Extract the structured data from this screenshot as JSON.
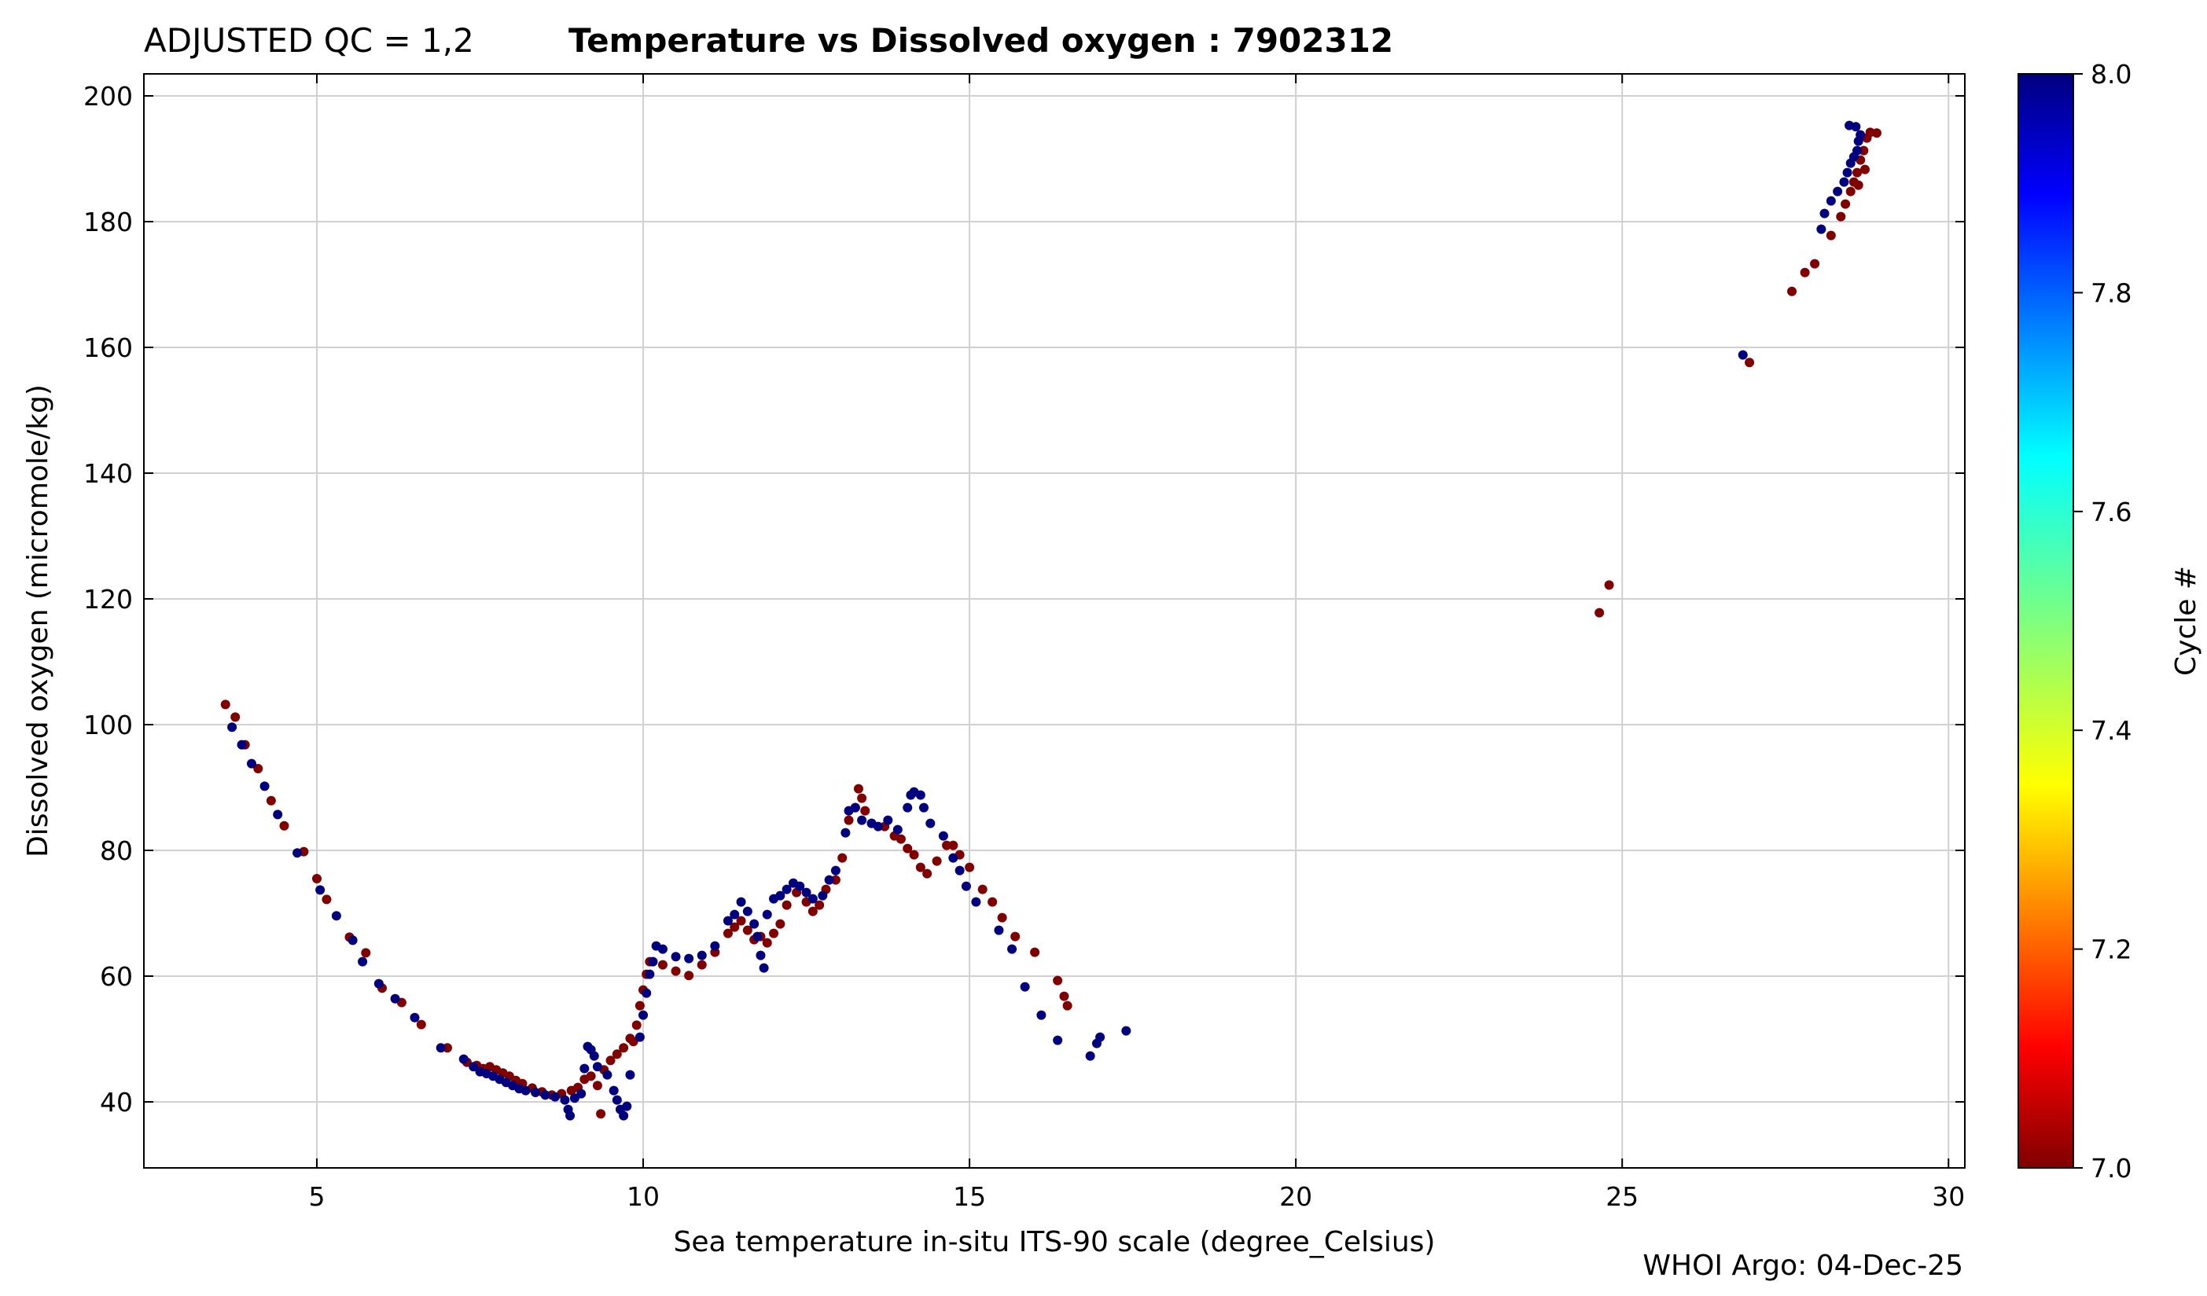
{
  "chart_data": {
    "type": "scatter",
    "title_prefix": "ADJUSTED QC = 1,2",
    "title": "Temperature vs Dissolved oxygen : 7902312",
    "xlabel": "Sea temperature in-situ ITS-90 scale  (degree_Celsius)",
    "ylabel": "Dissolved oxygen  (micromole/kg)",
    "xlim": [
      2.35,
      30.25
    ],
    "ylim": [
      29.5,
      203.5
    ],
    "xticks": [
      5,
      10,
      15,
      20,
      25,
      30
    ],
    "yticks": [
      40,
      60,
      80,
      100,
      120,
      140,
      160,
      180,
      200
    ],
    "grid": true,
    "colorbar": {
      "label": "Cycle #",
      "min": 7.0,
      "max": 8.0,
      "ticks": [
        "7.0",
        "7.2",
        "7.4",
        "7.6",
        "7.8",
        "8.0"
      ],
      "colormap": "jet"
    },
    "series": [
      {
        "name": "Cycle 7",
        "cycle": 7,
        "color": "#800000",
        "points": [
          [
            3.6,
            103.2
          ],
          [
            3.75,
            101.2
          ],
          [
            3.9,
            96.8
          ],
          [
            4.1,
            93
          ],
          [
            4.3,
            87.9
          ],
          [
            4.5,
            83.9
          ],
          [
            4.8,
            79.8
          ],
          [
            5.0,
            75.5
          ],
          [
            5.15,
            72.2
          ],
          [
            5.5,
            66.2
          ],
          [
            5.75,
            63.7
          ],
          [
            6.0,
            58.1
          ],
          [
            6.3,
            55.8
          ],
          [
            6.6,
            52.3
          ],
          [
            7.0,
            48.6
          ],
          [
            7.3,
            46.3
          ],
          [
            7.45,
            45.8
          ],
          [
            7.55,
            45.3
          ],
          [
            7.65,
            45.6
          ],
          [
            7.75,
            45.1
          ],
          [
            7.85,
            44.6
          ],
          [
            7.95,
            44.1
          ],
          [
            8.05,
            43.4
          ],
          [
            8.15,
            42.9
          ],
          [
            8.3,
            42.2
          ],
          [
            8.45,
            41.6
          ],
          [
            8.6,
            41.1
          ],
          [
            8.75,
            41.3
          ],
          [
            8.9,
            41.8
          ],
          [
            9.0,
            42.3
          ],
          [
            9.1,
            43.6
          ],
          [
            9.2,
            44.1
          ],
          [
            9.3,
            42.6
          ],
          [
            9.35,
            38.1
          ],
          [
            9.4,
            45.1
          ],
          [
            9.5,
            46.6
          ],
          [
            9.6,
            47.6
          ],
          [
            9.7,
            48.6
          ],
          [
            9.8,
            50.1
          ],
          [
            9.85,
            49.6
          ],
          [
            9.9,
            52.2
          ],
          [
            9.95,
            55.3
          ],
          [
            10.0,
            57.8
          ],
          [
            10.05,
            60.3
          ],
          [
            10.1,
            62.3
          ],
          [
            10.3,
            61.8
          ],
          [
            10.5,
            60.8
          ],
          [
            10.7,
            60.1
          ],
          [
            10.9,
            61.8
          ],
          [
            11.1,
            63.8
          ],
          [
            11.3,
            66.8
          ],
          [
            11.4,
            67.8
          ],
          [
            11.5,
            68.8
          ],
          [
            11.6,
            67.3
          ],
          [
            11.7,
            65.8
          ],
          [
            11.8,
            66.3
          ],
          [
            11.9,
            65.3
          ],
          [
            12.0,
            66.8
          ],
          [
            12.1,
            68.3
          ],
          [
            12.2,
            71.3
          ],
          [
            12.35,
            73.3
          ],
          [
            12.5,
            71.8
          ],
          [
            12.6,
            70.3
          ],
          [
            12.7,
            71.3
          ],
          [
            12.8,
            73.8
          ],
          [
            12.95,
            75.3
          ],
          [
            13.05,
            78.8
          ],
          [
            13.15,
            84.8
          ],
          [
            13.25,
            86.8
          ],
          [
            13.3,
            89.8
          ],
          [
            13.35,
            88.3
          ],
          [
            13.4,
            86.3
          ],
          [
            13.5,
            84.3
          ],
          [
            13.7,
            83.8
          ],
          [
            13.85,
            82.3
          ],
          [
            13.95,
            81.8
          ],
          [
            14.05,
            80.3
          ],
          [
            14.15,
            79.3
          ],
          [
            14.25,
            77.3
          ],
          [
            14.35,
            76.3
          ],
          [
            14.5,
            78.3
          ],
          [
            14.65,
            80.8
          ],
          [
            14.75,
            80.8
          ],
          [
            14.85,
            79.3
          ],
          [
            15.0,
            77.3
          ],
          [
            15.2,
            73.8
          ],
          [
            15.35,
            71.8
          ],
          [
            15.5,
            69.3
          ],
          [
            15.7,
            66.3
          ],
          [
            16.0,
            63.8
          ],
          [
            16.35,
            59.3
          ],
          [
            16.45,
            56.8
          ],
          [
            16.5,
            55.3
          ],
          [
            24.65,
            117.8
          ],
          [
            24.8,
            122.2
          ],
          [
            26.95,
            157.6
          ],
          [
            27.6,
            168.9
          ],
          [
            27.8,
            171.9
          ],
          [
            27.95,
            173.3
          ],
          [
            28.2,
            177.8
          ],
          [
            28.35,
            180.8
          ],
          [
            28.42,
            182.8
          ],
          [
            28.5,
            184.8
          ],
          [
            28.55,
            186.3
          ],
          [
            28.6,
            187.8
          ],
          [
            28.65,
            189.8
          ],
          [
            28.7,
            191.3
          ],
          [
            28.75,
            193.3
          ],
          [
            28.8,
            194.2
          ],
          [
            28.9,
            194.1
          ],
          [
            28.72,
            188.3
          ],
          [
            28.62,
            185.8
          ]
        ]
      },
      {
        "name": "Cycle 8",
        "cycle": 8,
        "color": "#00007f",
        "points": [
          [
            3.7,
            99.6
          ],
          [
            3.85,
            96.8
          ],
          [
            4.0,
            93.8
          ],
          [
            4.2,
            90.2
          ],
          [
            4.4,
            85.7
          ],
          [
            4.7,
            79.6
          ],
          [
            5.05,
            73.7
          ],
          [
            5.3,
            69.6
          ],
          [
            5.55,
            65.7
          ],
          [
            5.7,
            62.3
          ],
          [
            5.95,
            58.8
          ],
          [
            6.2,
            56.4
          ],
          [
            6.5,
            53.4
          ],
          [
            6.9,
            48.6
          ],
          [
            7.25,
            46.8
          ],
          [
            7.4,
            45.6
          ],
          [
            7.5,
            44.8
          ],
          [
            7.6,
            44.5
          ],
          [
            7.7,
            44.1
          ],
          [
            7.8,
            43.6
          ],
          [
            7.9,
            43.1
          ],
          [
            8.0,
            42.6
          ],
          [
            8.1,
            42.1
          ],
          [
            8.2,
            41.8
          ],
          [
            8.35,
            41.5
          ],
          [
            8.5,
            41.1
          ],
          [
            8.65,
            40.8
          ],
          [
            8.8,
            40.3
          ],
          [
            8.85,
            38.8
          ],
          [
            8.88,
            37.8
          ],
          [
            8.95,
            40.6
          ],
          [
            9.05,
            41.3
          ],
          [
            9.1,
            45.3
          ],
          [
            9.15,
            48.8
          ],
          [
            9.2,
            48.3
          ],
          [
            9.25,
            47.3
          ],
          [
            9.3,
            45.6
          ],
          [
            9.45,
            44.3
          ],
          [
            9.55,
            41.8
          ],
          [
            9.6,
            40.3
          ],
          [
            9.65,
            38.8
          ],
          [
            9.7,
            37.8
          ],
          [
            9.75,
            39.3
          ],
          [
            9.8,
            44.3
          ],
          [
            9.95,
            50.3
          ],
          [
            10.0,
            53.8
          ],
          [
            10.05,
            57.3
          ],
          [
            10.1,
            60.3
          ],
          [
            10.15,
            62.3
          ],
          [
            10.2,
            64.8
          ],
          [
            10.3,
            64.3
          ],
          [
            10.5,
            63.1
          ],
          [
            10.7,
            62.8
          ],
          [
            10.9,
            63.3
          ],
          [
            11.1,
            64.8
          ],
          [
            11.3,
            68.8
          ],
          [
            11.4,
            69.8
          ],
          [
            11.5,
            71.8
          ],
          [
            11.6,
            70.3
          ],
          [
            11.7,
            68.3
          ],
          [
            11.75,
            66.3
          ],
          [
            11.8,
            63.3
          ],
          [
            11.85,
            61.3
          ],
          [
            11.9,
            69.8
          ],
          [
            12.0,
            72.3
          ],
          [
            12.1,
            72.8
          ],
          [
            12.2,
            73.8
          ],
          [
            12.3,
            74.8
          ],
          [
            12.4,
            74.3
          ],
          [
            12.5,
            73.3
          ],
          [
            12.6,
            72.3
          ],
          [
            12.75,
            72.8
          ],
          [
            12.85,
            75.3
          ],
          [
            12.95,
            76.8
          ],
          [
            13.1,
            82.8
          ],
          [
            13.15,
            86.3
          ],
          [
            13.25,
            86.8
          ],
          [
            13.35,
            84.8
          ],
          [
            13.5,
            84.3
          ],
          [
            13.6,
            83.8
          ],
          [
            13.75,
            84.8
          ],
          [
            13.9,
            83.3
          ],
          [
            14.05,
            86.8
          ],
          [
            14.1,
            88.8
          ],
          [
            14.15,
            89.3
          ],
          [
            14.25,
            88.8
          ],
          [
            14.3,
            86.8
          ],
          [
            14.4,
            84.3
          ],
          [
            14.6,
            82.3
          ],
          [
            14.75,
            78.8
          ],
          [
            14.85,
            76.8
          ],
          [
            14.95,
            74.3
          ],
          [
            15.1,
            71.8
          ],
          [
            15.45,
            67.3
          ],
          [
            15.65,
            64.3
          ],
          [
            15.85,
            58.3
          ],
          [
            16.1,
            53.8
          ],
          [
            16.35,
            49.8
          ],
          [
            16.85,
            47.3
          ],
          [
            16.95,
            49.3
          ],
          [
            17.0,
            50.3
          ],
          [
            17.4,
            51.3
          ],
          [
            26.85,
            158.8
          ],
          [
            28.05,
            178.8
          ],
          [
            28.1,
            181.3
          ],
          [
            28.2,
            183.3
          ],
          [
            28.3,
            184.8
          ],
          [
            28.4,
            186.3
          ],
          [
            28.45,
            187.8
          ],
          [
            28.5,
            189.3
          ],
          [
            28.55,
            190.3
          ],
          [
            28.6,
            191.3
          ],
          [
            28.62,
            192.8
          ],
          [
            28.65,
            193.8
          ],
          [
            28.48,
            195.3
          ],
          [
            28.58,
            195.1
          ]
        ]
      }
    ],
    "footer": "WHOI Argo: 04-Dec-25"
  }
}
